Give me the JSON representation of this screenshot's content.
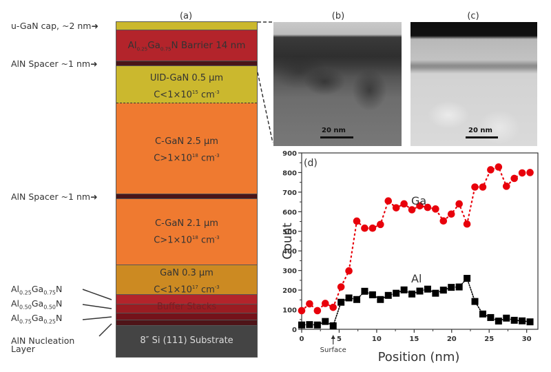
{
  "panels": {
    "a": "(a)",
    "b": "(b)",
    "c": "(c)",
    "d": "(d)"
  },
  "left_labels": {
    "cap": "u-GaN cap, ~2 nm",
    "spacer1": "AlN Spacer ~1 nm",
    "spacer2": "AlN Spacer ~1 nm",
    "algan025": {
      "base1": "Al",
      "sub1": "0.25",
      "base2": "Ga",
      "sub2": "0.75",
      "base3": "N"
    },
    "algan050": {
      "base1": "Al",
      "sub1": "0.50",
      "base2": "Ga",
      "sub2": "0.50",
      "base3": "N"
    },
    "algan075": {
      "base1": "Al",
      "sub1": "0.75",
      "base2": "Ga",
      "sub2": "0.25",
      "base3": "N"
    },
    "nucleation_line1": "AlN Nucleation",
    "nucleation_line2": "Layer"
  },
  "layers": {
    "barrier": {
      "al": "Al",
      "al_sub": "0.25",
      "ga": "Ga",
      "ga_sub": "0.75",
      "rest": "N Barrier 14 nm"
    },
    "uid": {
      "line1": "UID-GaN 0.5 µm",
      "line2_pre": "C<1×10",
      "line2_sup": "15",
      "line2_unit": " cm",
      "line2_unit_sup": "-3"
    },
    "cgan1": {
      "line1": "C-GaN 2.5 µm",
      "line2_pre": "C>1×10",
      "line2_sup": "18",
      "line2_unit": " cm",
      "line2_unit_sup": "-3"
    },
    "cgan2": {
      "line1": "C-GaN 2.1 µm",
      "line2_pre": "C>1×10",
      "line2_sup": "18",
      "line2_unit": " cm",
      "line2_unit_sup": "-3"
    },
    "gan": {
      "line1": "GaN 0.3 µm",
      "line2_pre": "C<1×10",
      "line2_sup": "17",
      "line2_unit": " cm",
      "line2_unit_sup": "-3"
    },
    "buffer": "Buffer Stacks",
    "substrate": "8″ Si (111) Substrate"
  },
  "colors": {
    "cap": "#cbb82e",
    "barrier": "#b3242b",
    "spacer": "#4a1518",
    "uid": "#cbb82e",
    "cgan": "#ef7a30",
    "gan": "#cc8a22",
    "algan025": "#b3242b",
    "algan050": "#9a1c22",
    "algan075": "#74121a",
    "nucleation": "#4e1418",
    "substrate": "#444444",
    "ga": "#e8000b",
    "al": "#000000"
  },
  "tem": {
    "b_scale": "20 nm",
    "c_scale": "20 nm"
  },
  "chart_data": {
    "type": "scatter",
    "title": "",
    "xlabel": "Position (nm)",
    "ylabel": "Count",
    "xlim": [
      0,
      31.5
    ],
    "ylim": [
      0,
      900
    ],
    "xticks": [
      0,
      5,
      10,
      15,
      20,
      25,
      30
    ],
    "yticks": [
      0,
      100,
      200,
      300,
      400,
      500,
      600,
      700,
      800,
      900
    ],
    "grid": false,
    "annotations": [
      {
        "text": "Surface",
        "x": 4.2,
        "arrow": "up"
      },
      {
        "text": "Ga",
        "x": 13.5,
        "y": 700
      },
      {
        "text": "Al",
        "x": 13.5,
        "y": 300
      }
    ],
    "series": [
      {
        "name": "Ga",
        "marker": "circle",
        "line": "dotted",
        "x": [
          0.0,
          1.05,
          2.1,
          3.15,
          4.2,
          5.25,
          6.3,
          7.35,
          8.4,
          9.45,
          10.5,
          11.55,
          12.6,
          13.65,
          14.7,
          15.75,
          16.8,
          17.85,
          18.9,
          19.95,
          21.0,
          22.05,
          23.1,
          24.15,
          25.2,
          26.25,
          27.3,
          28.35,
          29.4,
          30.45
        ],
        "y": [
          95,
          130,
          95,
          132,
          112,
          216,
          298,
          552,
          516,
          516,
          535,
          655,
          620,
          640,
          610,
          630,
          622,
          614,
          553,
          588,
          640,
          537,
          726,
          726,
          814,
          828,
          730,
          770,
          798,
          800
        ]
      },
      {
        "name": "Al",
        "marker": "square",
        "line": "dotted",
        "x": [
          0.0,
          1.05,
          2.1,
          3.15,
          4.2,
          5.25,
          6.3,
          7.35,
          8.4,
          9.45,
          10.5,
          11.55,
          12.6,
          13.65,
          14.7,
          15.75,
          16.8,
          17.85,
          18.9,
          19.95,
          21.0,
          22.05,
          23.1,
          24.15,
          25.2,
          26.25,
          27.3,
          28.35,
          29.4,
          30.45
        ],
        "y": [
          22,
          24,
          22,
          40,
          18,
          138,
          160,
          152,
          194,
          176,
          152,
          173,
          184,
          201,
          180,
          195,
          205,
          184,
          200,
          214,
          216,
          260,
          142,
          78,
          60,
          42,
          57,
          46,
          43,
          38
        ]
      }
    ]
  }
}
